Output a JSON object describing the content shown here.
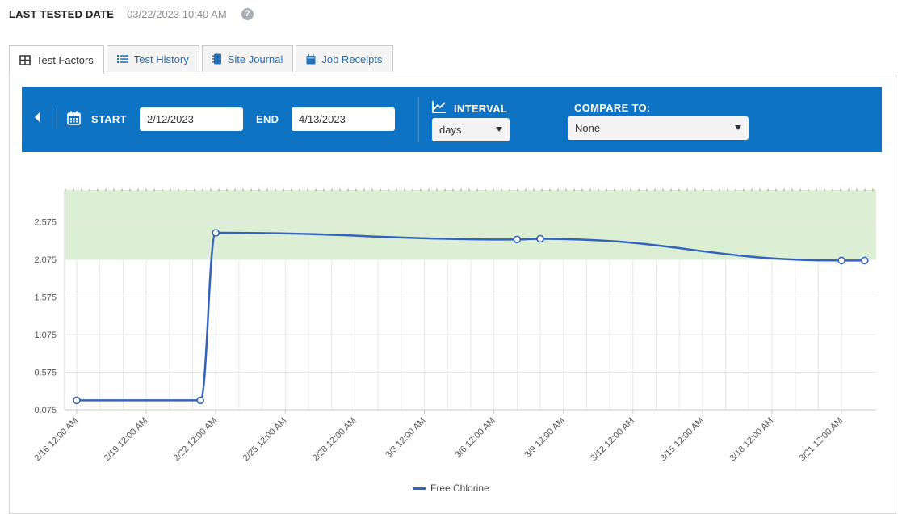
{
  "header": {
    "last_tested_label": "LAST TESTED DATE",
    "last_tested_value": "03/22/2023 10:40 AM",
    "help_glyph": "?"
  },
  "tabs": [
    {
      "label": "Test Factors",
      "icon": "grid-icon",
      "active": true
    },
    {
      "label": "Test History",
      "icon": "list-icon",
      "active": false
    },
    {
      "label": "Site Journal",
      "icon": "notebook-icon",
      "active": false
    },
    {
      "label": "Job Receipts",
      "icon": "calendar-icon",
      "active": false
    }
  ],
  "toolbar": {
    "start_label": "START",
    "start_value": "2/12/2023",
    "end_label": "END",
    "end_value": "4/13/2023",
    "interval_label": "INTERVAL",
    "interval_value": "days",
    "compare_label": "COMPARE TO:",
    "compare_value": "None",
    "background_color": "#0f73c4"
  },
  "chart_data": {
    "type": "line",
    "x_tick_labels": [
      "2/16 12:00 AM",
      "2/19 12:00 AM",
      "2/22 12:00 AM",
      "2/25 12:00 AM",
      "2/28 12:00 AM",
      "3/3 12:00 AM",
      "3/6 12:00 AM",
      "3/9 12:00 AM",
      "3/12 12:00 AM",
      "3/15 12:00 AM",
      "3/18 12:00 AM",
      "3/21 12:00 AM"
    ],
    "y_tick_labels": [
      "0.075",
      "0.575",
      "1.075",
      "1.575",
      "2.075",
      "2.575"
    ],
    "ylim": [
      0.075,
      3.0
    ],
    "target_band": [
      2.075,
      3.0
    ],
    "target_band_color": "#dcefd5",
    "series": [
      {
        "name": "Free Chlorine",
        "color": "#3463b9",
        "points": [
          {
            "x": "2/16/2023 12:00 AM",
            "y": 0.2
          },
          {
            "x": "2/21/2023 8:00 AM",
            "y": 0.2
          },
          {
            "x": "2/22/2023 12:00 AM",
            "y": 2.43
          },
          {
            "x": "3/7/2023 12:00 AM",
            "y": 2.34
          },
          {
            "x": "3/8/2023 12:00 AM",
            "y": 2.35
          },
          {
            "x": "3/21/2023 12:00 AM",
            "y": 2.06
          },
          {
            "x": "3/22/2023 12:00 AM",
            "y": 2.06
          }
        ]
      }
    ]
  }
}
